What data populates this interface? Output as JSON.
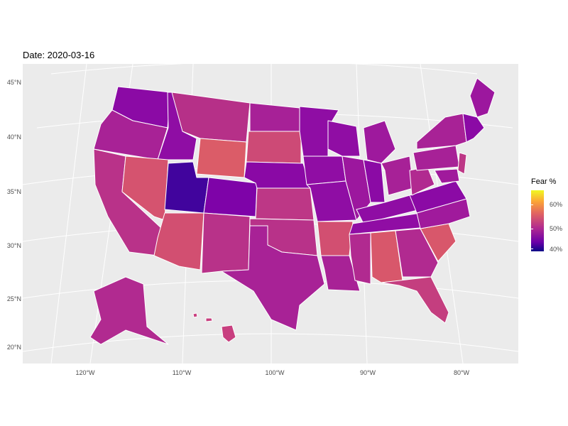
{
  "title": "Date: 2020-03-16",
  "legend": {
    "title": "Fear %",
    "ticks": [
      "60%",
      "50%",
      "40%"
    ],
    "colors": [
      "#0d0887",
      "#6a00a8",
      "#b12a90",
      "#e16462",
      "#fca636",
      "#f0f921"
    ]
  },
  "axes": {
    "y_labels": [
      "45°N",
      "40°N",
      "35°N",
      "30°N",
      "25°N",
      "20°N"
    ],
    "x_labels": [
      "120°W",
      "110°W",
      "100°W",
      "90°W",
      "80°W"
    ]
  },
  "map_data": {
    "metric": "Fear %",
    "date": "2020-03-16",
    "color_scale": {
      "low": 40,
      "high": 65
    },
    "states": {
      "Utah": 40,
      "Colorado": 45,
      "Nebraska": 46,
      "Washington": 47,
      "Idaho": 48,
      "Missouri": 48,
      "Tennessee": 48,
      "Iowa": 49,
      "Minnesota": 49,
      "Wisconsin": 49,
      "Indiana": 49,
      "Kentucky": 49,
      "Virginia": 49,
      "Michigan": 50,
      "Illinois": 50,
      "Ohio": 51,
      "North Carolina": 51,
      "Maryland": 51,
      "Texas": 51,
      "Oregon": 52,
      "North Dakota": 52,
      "Louisiana": 52,
      "Mississippi": 52,
      "Georgia": 52,
      "West Virginia": 52,
      "Pennsylvania": 52,
      "New York": 52,
      "Alaska": 53,
      "Montana": 53,
      "Kansas": 53,
      "Oklahoma": 53,
      "California": 53,
      "New Mexico": 53,
      "Florida": 54,
      "New Jersey": 54,
      "Hawaii": 55,
      "Arkansas": 55,
      "South Dakota": 56,
      "South Carolina": 56,
      "Nevada": 56,
      "Arizona": 57,
      "Alabama": 57,
      "Wyoming": 58
    }
  }
}
